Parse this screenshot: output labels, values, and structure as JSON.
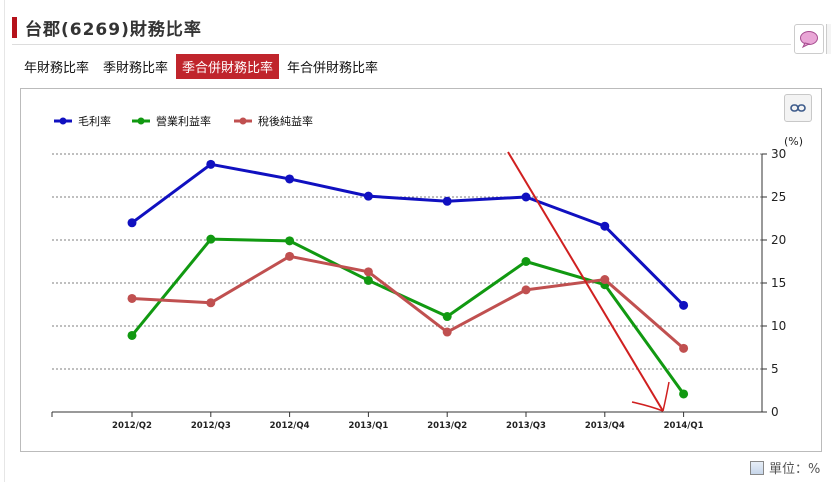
{
  "header": {
    "title": "台郡(6269)財務比率"
  },
  "tabs": [
    {
      "label": "年財務比率",
      "active": false
    },
    {
      "label": "季財務比率",
      "active": false
    },
    {
      "label": "季合併財務比率",
      "active": true
    },
    {
      "label": "年合併財務比率",
      "active": false
    }
  ],
  "icons": {
    "chat": "speech-bubble-icon",
    "link": "link-icon",
    "table": "table-icon"
  },
  "footer": {
    "unit_label": "單位：%"
  },
  "colors": {
    "accent": "#c0252c",
    "series1": "#1010c0",
    "series2": "#119911",
    "series3": "#c05050",
    "annotation": "#d02020"
  },
  "chart_data": {
    "type": "line",
    "categories": [
      "2012/Q2",
      "2012/Q3",
      "2012/Q4",
      "2013/Q1",
      "2013/Q2",
      "2013/Q3",
      "2013/Q4",
      "2014/Q1"
    ],
    "series": [
      {
        "name": "毛利率",
        "values": [
          22.0,
          28.8,
          27.1,
          25.1,
          24.5,
          25.0,
          21.6,
          12.4
        ]
      },
      {
        "name": "營業利益率",
        "values": [
          8.9,
          20.1,
          19.9,
          15.3,
          11.1,
          17.5,
          14.8,
          2.1
        ]
      },
      {
        "name": "稅後純益率",
        "values": [
          13.2,
          12.7,
          18.1,
          16.3,
          9.3,
          14.2,
          15.4,
          7.4
        ]
      }
    ],
    "y_unit": "(%)",
    "ylim": [
      0,
      30
    ],
    "yticks": [
      0,
      5,
      10,
      15,
      20,
      25,
      30
    ],
    "legend": "top-left",
    "grid": true,
    "annotation": "hand-drawn red arrow pointing down to 2014/Q1"
  }
}
